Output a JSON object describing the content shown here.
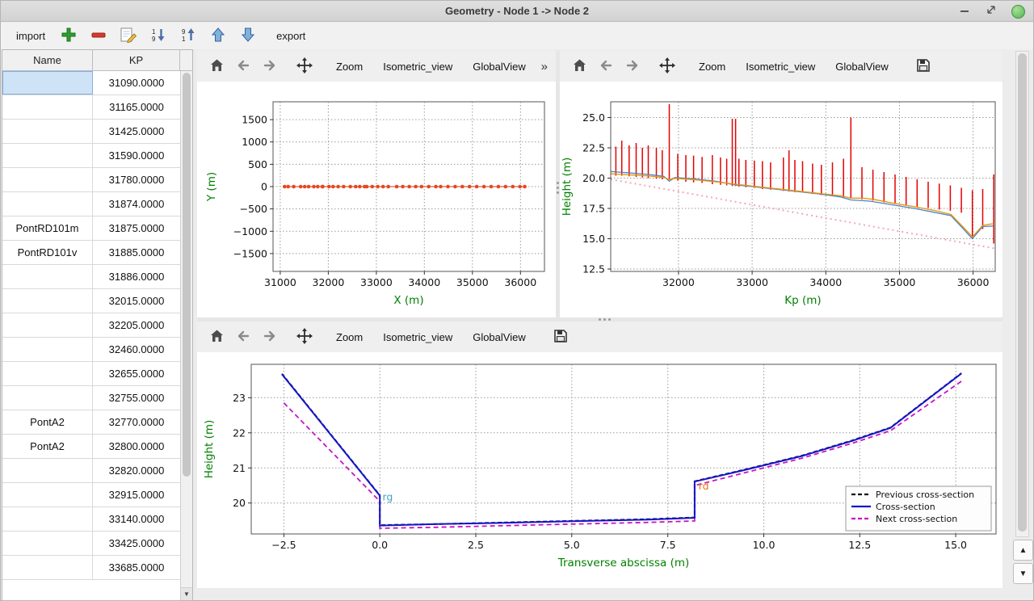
{
  "window": {
    "title": "Geometry - Node 1 -> Node 2"
  },
  "colors": {
    "axis_label_green": "#008000",
    "grid_gray": "#9a9a9a",
    "selection_blue": "#cfe3f7",
    "close_button_green": "#53b552",
    "cross_section_red": "#e60000"
  },
  "main_toolbar": {
    "import_label": "import",
    "export_label": "export",
    "icon_names": [
      "plus-icon",
      "minus-icon",
      "edit-icon",
      "sort-descending-icon",
      "sort-ascending-icon",
      "move-up-icon",
      "move-down-icon"
    ]
  },
  "table": {
    "columns": [
      "Name",
      "KP"
    ],
    "rows": [
      {
        "name": "",
        "kp": "31090.0000",
        "selected": true
      },
      {
        "name": "",
        "kp": "31165.0000"
      },
      {
        "name": "",
        "kp": "31425.0000"
      },
      {
        "name": "",
        "kp": "31590.0000"
      },
      {
        "name": "",
        "kp": "31780.0000"
      },
      {
        "name": "",
        "kp": "31874.0000"
      },
      {
        "name": "PontRD101m",
        "kp": "31875.0000"
      },
      {
        "name": "PontRD101v",
        "kp": "31885.0000"
      },
      {
        "name": "",
        "kp": "31886.0000"
      },
      {
        "name": "",
        "kp": "32015.0000"
      },
      {
        "name": "",
        "kp": "32205.0000"
      },
      {
        "name": "",
        "kp": "32460.0000"
      },
      {
        "name": "",
        "kp": "32655.0000"
      },
      {
        "name": "",
        "kp": "32755.0000"
      },
      {
        "name": "PontA2",
        "kp": "32770.0000"
      },
      {
        "name": "PontA2",
        "kp": "32800.0000"
      },
      {
        "name": "",
        "kp": "32820.0000"
      },
      {
        "name": "",
        "kp": "32915.0000"
      },
      {
        "name": "",
        "kp": "33140.0000"
      },
      {
        "name": "",
        "kp": "33425.0000"
      },
      {
        "name": "",
        "kp": "33685.0000"
      }
    ]
  },
  "plot_toolbars": {
    "top_left": {
      "icon_buttons": [
        "home",
        "back",
        "forward",
        "pan"
      ],
      "text_buttons": [
        "Zoom",
        "Isometric_view",
        "GlobalView"
      ],
      "overflow_label": "»"
    },
    "top_right": {
      "icon_buttons": [
        "home",
        "back",
        "forward",
        "pan"
      ],
      "text_buttons": [
        "Zoom",
        "Isometric_view",
        "GlobalView"
      ],
      "has_save": true
    },
    "bottom": {
      "icon_buttons": [
        "home",
        "back",
        "forward",
        "pan"
      ],
      "text_buttons": [
        "Zoom",
        "Isometric_view",
        "GlobalView"
      ],
      "has_save": true
    }
  },
  "chart_data": [
    {
      "id": "plan_view",
      "type": "scatter",
      "title": "",
      "xlabel": "X (m)",
      "ylabel": "Y (m)",
      "xlim": [
        30850,
        36500
      ],
      "ylim": [
        -1900,
        1900
      ],
      "xticks": [
        31000,
        32000,
        33000,
        34000,
        35000,
        36000
      ],
      "xtick_labels": [
        "31000",
        "32000",
        "33000",
        "34000",
        "35000",
        "36000"
      ],
      "yticks": [
        -1500,
        -1000,
        -500,
        0,
        500,
        1000,
        1500
      ],
      "ytick_labels": [
        "−1500",
        "−1000",
        "−500",
        "0",
        "500",
        "1000",
        "1500"
      ],
      "grid": true,
      "margins": {
        "l": 94,
        "r": 14,
        "t": 25,
        "b": 57
      },
      "ylabel_offset": 72,
      "series": [
        {
          "name": "river-axis-line",
          "kind": "line",
          "color": "#c0392b",
          "width": 1,
          "points": [
            [
              31090,
              0
            ],
            [
              36090,
              0
            ]
          ]
        },
        {
          "name": "cross-section-markers",
          "kind": "markers",
          "color": "#e8481c",
          "r": 2.3,
          "y": 0,
          "x": [
            31090,
            31165,
            31280,
            31425,
            31510,
            31590,
            31700,
            31780,
            31875,
            31886,
            32015,
            32100,
            32205,
            32320,
            32460,
            32570,
            32655,
            32755,
            32800,
            32915,
            33030,
            33140,
            33250,
            33425,
            33550,
            33685,
            33820,
            33940,
            34090,
            34240,
            34340,
            34490,
            34640,
            34790,
            34940,
            35090,
            35240,
            35390,
            35540,
            35690,
            35840,
            35990,
            36090
          ]
        }
      ]
    },
    {
      "id": "longitudinal_profile",
      "type": "line",
      "title": "",
      "xlabel": "Kp (m)",
      "ylabel": "Height (m)",
      "xlim": [
        31080,
        36300
      ],
      "ylim": [
        12.3,
        26.3
      ],
      "xticks": [
        32000,
        33000,
        34000,
        35000,
        36000
      ],
      "xtick_labels": [
        "32000",
        "33000",
        "34000",
        "35000",
        "36000"
      ],
      "yticks": [
        12.5,
        15.0,
        17.5,
        20.0,
        22.5,
        25.0
      ],
      "ytick_labels": [
        "12.5",
        "15.0",
        "17.5",
        "20.0",
        "22.5",
        "25.0"
      ],
      "grid": true,
      "margins": {
        "l": 63,
        "r": 9,
        "t": 25,
        "b": 57
      },
      "ylabel_offset": 50,
      "series": [
        {
          "name": "thalweg-dotted",
          "kind": "line",
          "color": "#f2a6bb",
          "width": 2,
          "dash": "2,4",
          "points": [
            [
              31080,
              19.9
            ],
            [
              36290,
              14.2
            ]
          ]
        },
        {
          "name": "cross-section-extents",
          "kind": "vlines",
          "color": "#e60000",
          "width": 1.5,
          "data": [
            [
              31150,
              20.2,
              22.6
            ],
            [
              31230,
              20.2,
              23.1
            ],
            [
              31330,
              20.15,
              22.7
            ],
            [
              31425,
              20.1,
              22.9
            ],
            [
              31510,
              20.05,
              22.5
            ],
            [
              31590,
              20.0,
              22.7
            ],
            [
              31700,
              19.95,
              22.5
            ],
            [
              31780,
              19.9,
              22.3
            ],
            [
              31875,
              19.85,
              26.1
            ],
            [
              31990,
              19.8,
              22.0
            ],
            [
              32100,
              19.7,
              21.9
            ],
            [
              32205,
              19.65,
              21.85
            ],
            [
              32320,
              19.6,
              21.75
            ],
            [
              32460,
              19.5,
              21.9
            ],
            [
              32570,
              19.45,
              21.7
            ],
            [
              32655,
              19.4,
              21.6
            ],
            [
              32730,
              19.35,
              24.9
            ],
            [
              32775,
              19.35,
              24.9
            ],
            [
              32820,
              19.3,
              21.6
            ],
            [
              32915,
              19.25,
              21.5
            ],
            [
              33030,
              19.2,
              21.45
            ],
            [
              33140,
              19.1,
              21.4
            ],
            [
              33250,
              19.05,
              21.3
            ],
            [
              33425,
              18.95,
              21.7
            ],
            [
              33500,
              18.9,
              22.3
            ],
            [
              33580,
              18.85,
              21.5
            ],
            [
              33685,
              18.8,
              21.4
            ],
            [
              33820,
              18.7,
              21.2
            ],
            [
              33940,
              18.6,
              21.1
            ],
            [
              34090,
              18.5,
              21.3
            ],
            [
              34240,
              18.4,
              21.6
            ],
            [
              34340,
              18.35,
              25.0
            ],
            [
              34490,
              18.25,
              20.9
            ],
            [
              34640,
              18.15,
              20.7
            ],
            [
              34790,
              18.0,
              20.5
            ],
            [
              34940,
              17.9,
              20.3
            ],
            [
              35090,
              17.8,
              20.1
            ],
            [
              35240,
              17.65,
              19.9
            ],
            [
              35390,
              17.55,
              19.7
            ],
            [
              35540,
              17.4,
              19.55
            ],
            [
              35690,
              17.3,
              19.4
            ],
            [
              35840,
              17.15,
              19.2
            ],
            [
              35990,
              15.1,
              19.0
            ],
            [
              36130,
              15.8,
              19.1
            ],
            [
              36280,
              14.6,
              20.3
            ]
          ]
        },
        {
          "name": "left-bank-line",
          "kind": "line",
          "color": "#4a86c8",
          "width": 1.3,
          "points": [
            [
              31080,
              20.55
            ],
            [
              31300,
              20.45
            ],
            [
              31600,
              20.3
            ],
            [
              31800,
              20.15
            ],
            [
              31875,
              19.75
            ],
            [
              31950,
              20.05
            ],
            [
              32200,
              19.95
            ],
            [
              32500,
              19.75
            ],
            [
              32770,
              19.45
            ],
            [
              33000,
              19.3
            ],
            [
              33300,
              19.1
            ],
            [
              33600,
              18.9
            ],
            [
              33900,
              18.7
            ],
            [
              34200,
              18.45
            ],
            [
              34340,
              18.2
            ],
            [
              34600,
              18.1
            ],
            [
              34900,
              17.8
            ],
            [
              35200,
              17.5
            ],
            [
              35500,
              17.15
            ],
            [
              35700,
              16.9
            ],
            [
              35900,
              15.6
            ],
            [
              35990,
              15.0
            ],
            [
              36130,
              16.0
            ],
            [
              36280,
              16.05
            ]
          ]
        },
        {
          "name": "right-bank-line",
          "kind": "line",
          "color": "#e8950c",
          "width": 1.3,
          "points": [
            [
              31080,
              20.35
            ],
            [
              31300,
              20.28
            ],
            [
              31600,
              20.18
            ],
            [
              31800,
              20.05
            ],
            [
              31875,
              19.9
            ],
            [
              31950,
              19.98
            ],
            [
              32200,
              19.88
            ],
            [
              32500,
              19.7
            ],
            [
              32770,
              19.5
            ],
            [
              33000,
              19.35
            ],
            [
              33300,
              19.15
            ],
            [
              33600,
              18.95
            ],
            [
              33900,
              18.75
            ],
            [
              34200,
              18.55
            ],
            [
              34340,
              18.35
            ],
            [
              34500,
              18.35
            ],
            [
              34650,
              18.25
            ],
            [
              34900,
              17.95
            ],
            [
              35200,
              17.65
            ],
            [
              35500,
              17.3
            ],
            [
              35700,
              17.0
            ],
            [
              35900,
              15.75
            ],
            [
              35990,
              15.15
            ],
            [
              36130,
              16.1
            ],
            [
              36280,
              16.25
            ]
          ]
        }
      ]
    },
    {
      "id": "cross_section",
      "type": "line",
      "title": "",
      "xlabel": "Transverse abscissa (m)",
      "ylabel": "Height (m)",
      "xlim": [
        -3.35,
        16.05
      ],
      "ylim": [
        19.12,
        23.95
      ],
      "xticks": [
        -2.5,
        0.0,
        2.5,
        5.0,
        7.5,
        10.0,
        12.5,
        15.0
      ],
      "xtick_labels": [
        "−2.5",
        "0.0",
        "2.5",
        "5.0",
        "7.5",
        "10.0",
        "12.5",
        "15.0"
      ],
      "yticks": [
        20,
        21,
        22,
        23
      ],
      "ytick_labels": [
        "20",
        "21",
        "22",
        "23"
      ],
      "grid": true,
      "margins": {
        "l": 67,
        "r": 8,
        "t": 15,
        "b": 67
      },
      "ylabel_offset": 48,
      "series": [
        {
          "name": "previous-cross-section",
          "kind": "line",
          "color": "#111111",
          "width": 2,
          "dash": "5,3",
          "points": [
            [
              -2.55,
              23.68
            ],
            [
              0,
              20.22
            ],
            [
              0,
              19.37
            ],
            [
              1.5,
              19.4
            ],
            [
              3,
              19.44
            ],
            [
              5,
              19.49
            ],
            [
              7,
              19.54
            ],
            [
              8.2,
              19.59
            ],
            [
              8.2,
              20.62
            ],
            [
              9.5,
              20.95
            ],
            [
              11,
              21.35
            ],
            [
              12.3,
              21.78
            ],
            [
              13.3,
              22.15
            ],
            [
              15.15,
              23.7
            ]
          ]
        },
        {
          "name": "next-cross-section",
          "kind": "line",
          "color": "#c515c5",
          "width": 1.8,
          "dash": "6,4",
          "points": [
            [
              -2.5,
              22.85
            ],
            [
              0,
              20.05
            ],
            [
              0,
              19.28
            ],
            [
              1.5,
              19.31
            ],
            [
              3,
              19.35
            ],
            [
              5,
              19.4
            ],
            [
              7,
              19.45
            ],
            [
              8.2,
              19.49
            ],
            [
              8.2,
              20.5
            ],
            [
              9.5,
              20.86
            ],
            [
              11,
              21.28
            ],
            [
              12.3,
              21.7
            ],
            [
              13.3,
              22.06
            ],
            [
              15.15,
              23.47
            ]
          ]
        },
        {
          "name": "current-cross-section",
          "kind": "line",
          "color": "#1515cc",
          "width": 2,
          "points": [
            [
              -2.55,
              23.67
            ],
            [
              0,
              20.21
            ],
            [
              0,
              19.36
            ],
            [
              1.5,
              19.4
            ],
            [
              3,
              19.43
            ],
            [
              5,
              19.48
            ],
            [
              7,
              19.53
            ],
            [
              8.2,
              19.58
            ],
            [
              8.2,
              20.61
            ],
            [
              9.5,
              20.94
            ],
            [
              11,
              21.34
            ],
            [
              12.3,
              21.77
            ],
            [
              13.3,
              22.14
            ],
            [
              15.15,
              23.69
            ]
          ]
        }
      ],
      "annotations": [
        {
          "text": "rg",
          "x": 0.07,
          "y": 20.08,
          "color": "#41a3c9"
        },
        {
          "text": "rd",
          "x": 8.3,
          "y": 20.38,
          "color": "#e2761b"
        }
      ],
      "legend": {
        "loc": "lower right",
        "items": [
          {
            "label": "Previous cross-section",
            "color": "#111111",
            "dash": "5,3"
          },
          {
            "label": "Cross-section",
            "color": "#1515cc",
            "dash": null
          },
          {
            "label": "Next cross-section",
            "color": "#c515c5",
            "dash": "5,3"
          }
        ]
      }
    }
  ]
}
